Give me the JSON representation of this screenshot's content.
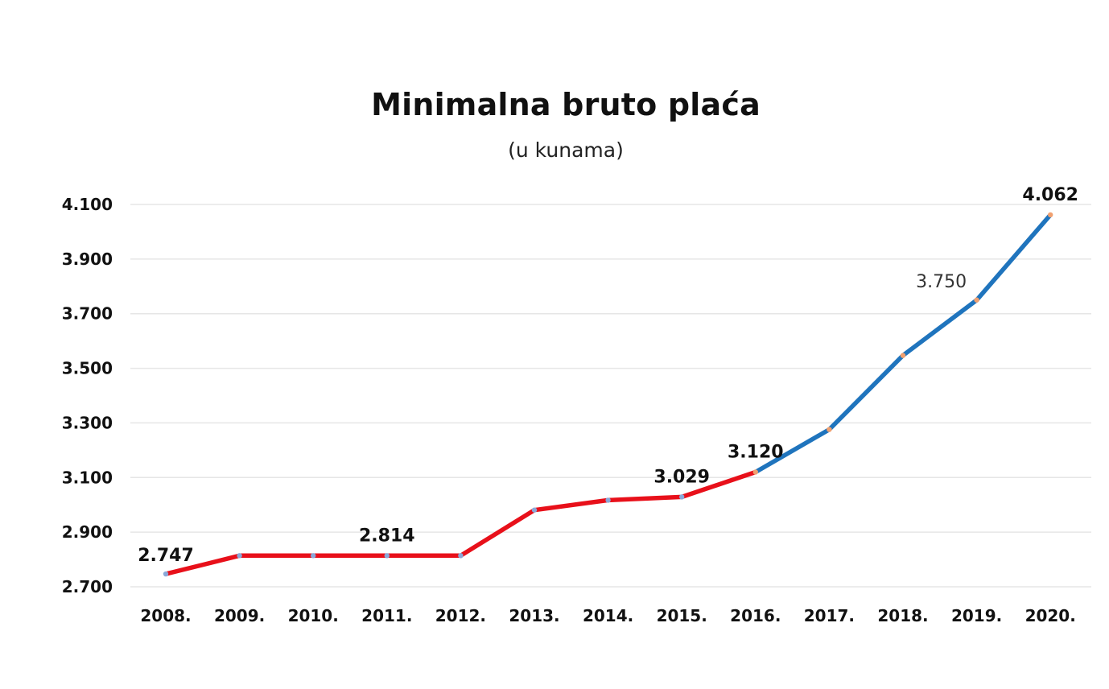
{
  "chart_data": {
    "type": "line",
    "title": "Minimalna bruto plaća",
    "subtitle": "(u kunama)",
    "xlabel": "",
    "ylabel": "",
    "categories": [
      "2008.",
      "2009.",
      "2010.",
      "2011.",
      "2012.",
      "2013.",
      "2014.",
      "2015.",
      "2016.",
      "2017.",
      "2018.",
      "2019.",
      "2020."
    ],
    "values": [
      2747,
      2814,
      2814,
      2814,
      2814,
      2981,
      3017,
      3029,
      3120,
      3276,
      3547,
      3750,
      4062
    ],
    "ylim": [
      2700,
      4100
    ],
    "yticks": [
      2700,
      2900,
      3100,
      3300,
      3500,
      3700,
      3900,
      4100
    ],
    "ytick_labels": [
      "2.700",
      "2.900",
      "3.100",
      "3.300",
      "3.500",
      "3.700",
      "3.900",
      "4.100"
    ],
    "data_labels": [
      {
        "index": 0,
        "text": "2.747"
      },
      {
        "index": 3,
        "text": "2.814"
      },
      {
        "index": 7,
        "text": "3.029"
      },
      {
        "index": 8,
        "text": "3.120"
      },
      {
        "index": 11,
        "text": "3.750"
      },
      {
        "index": 12,
        "text": "4.062"
      }
    ],
    "segments": [
      {
        "from": 0,
        "to": 8,
        "color": "#e8101a"
      },
      {
        "from": 8,
        "to": 12,
        "color": "#1f74bd"
      }
    ],
    "grid": true,
    "legend": "none"
  }
}
